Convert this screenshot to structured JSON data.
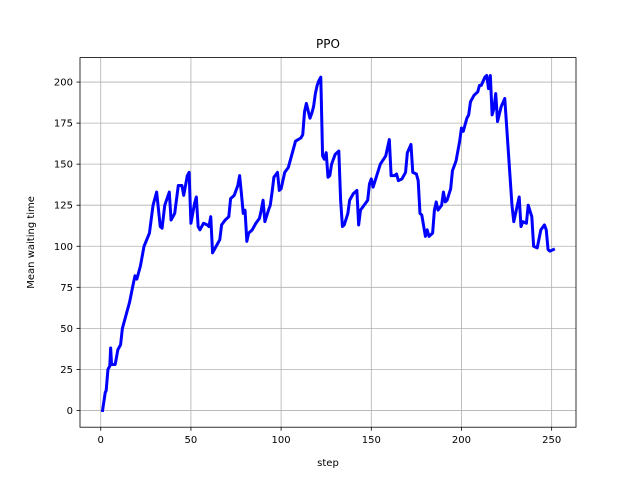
{
  "chart_data": {
    "type": "line",
    "title": "PPO",
    "x_label": "step",
    "y_label": "Mean waiting time",
    "grid": true,
    "xlim": [
      -11.5,
      263.5
    ],
    "ylim": [
      -10.2,
      214.9
    ],
    "xticks": [
      0,
      50,
      100,
      150,
      200,
      250
    ],
    "yticks": [
      0,
      25,
      50,
      75,
      100,
      125,
      150,
      175,
      200
    ],
    "series": [
      {
        "color": "#0000ff",
        "x": [
          1,
          2.5,
          3,
          4,
          5,
          5.5,
          6,
          8,
          9.5,
          11,
          12,
          14.5,
          16,
          18,
          19,
          20,
          22,
          24,
          27,
          29,
          31,
          33,
          34,
          35.5,
          38,
          39,
          41,
          43,
          45,
          46,
          48,
          49,
          50,
          52,
          53,
          54,
          55,
          57,
          59,
          60,
          61,
          62,
          64,
          66,
          67,
          69,
          71,
          72,
          74,
          76,
          77,
          78,
          79,
          80,
          81,
          82,
          84,
          86,
          88,
          89,
          90,
          91,
          93,
          94,
          95,
          96,
          98,
          99,
          100,
          102,
          104,
          106,
          108,
          111,
          112,
          113,
          114,
          116,
          117,
          118,
          119,
          120,
          121,
          122,
          123,
          124,
          125,
          126,
          127,
          128,
          130,
          132,
          133,
          134,
          135,
          137,
          138,
          140,
          142,
          143,
          144,
          146,
          148,
          149,
          150,
          151,
          153,
          155,
          158,
          160,
          161,
          163,
          164,
          165,
          167,
          169,
          170,
          172,
          173,
          175,
          176,
          177,
          178,
          180,
          181,
          182,
          184,
          185,
          186,
          187,
          189,
          190,
          191,
          192,
          194,
          195,
          197,
          198,
          199,
          200,
          201,
          203,
          204,
          205,
          207,
          209,
          210,
          211,
          213,
          214,
          215,
          216,
          217,
          218,
          219,
          220,
          222,
          224,
          228,
          229,
          230,
          232,
          233,
          234,
          236,
          237,
          239,
          240,
          242,
          244,
          246,
          247,
          248,
          249,
          251
        ],
        "values": [
          0,
          11,
          12,
          25,
          27,
          38,
          28,
          28,
          37,
          40,
          50,
          60,
          66,
          77,
          82,
          80,
          88,
          100,
          108,
          125,
          133,
          112,
          111,
          125,
          133,
          116,
          120,
          137,
          137,
          131,
          143,
          145,
          114,
          126,
          130,
          112,
          110,
          114,
          113,
          112,
          118,
          96,
          100,
          104,
          113,
          116,
          118,
          129,
          131,
          137,
          143,
          132,
          120,
          122,
          103,
          108,
          110,
          114,
          117,
          122,
          128,
          115,
          122,
          125,
          133,
          142,
          145,
          134,
          135,
          145,
          148,
          156,
          164,
          166,
          168,
          182,
          187,
          178,
          181,
          185,
          193,
          198,
          201,
          203,
          155,
          153,
          157,
          142,
          143,
          150,
          156,
          158,
          128,
          112,
          113,
          120,
          128,
          132,
          134,
          113,
          122,
          125,
          128,
          138,
          141,
          136,
          143,
          150,
          155,
          165,
          143,
          143,
          144,
          140,
          141,
          145,
          157,
          162,
          145,
          144,
          140,
          120,
          119,
          106,
          110,
          106,
          108,
          122,
          127,
          122,
          125,
          133,
          127,
          128,
          135,
          146,
          152,
          158,
          164,
          172,
          170,
          178,
          180,
          188,
          192,
          194,
          198,
          198,
          203,
          204,
          196,
          204,
          180,
          184,
          193,
          176,
          185,
          190,
          125,
          115,
          120,
          130,
          112,
          115,
          114,
          125,
          118,
          100,
          99,
          110,
          113,
          110,
          98,
          97,
          98
        ]
      }
    ]
  }
}
